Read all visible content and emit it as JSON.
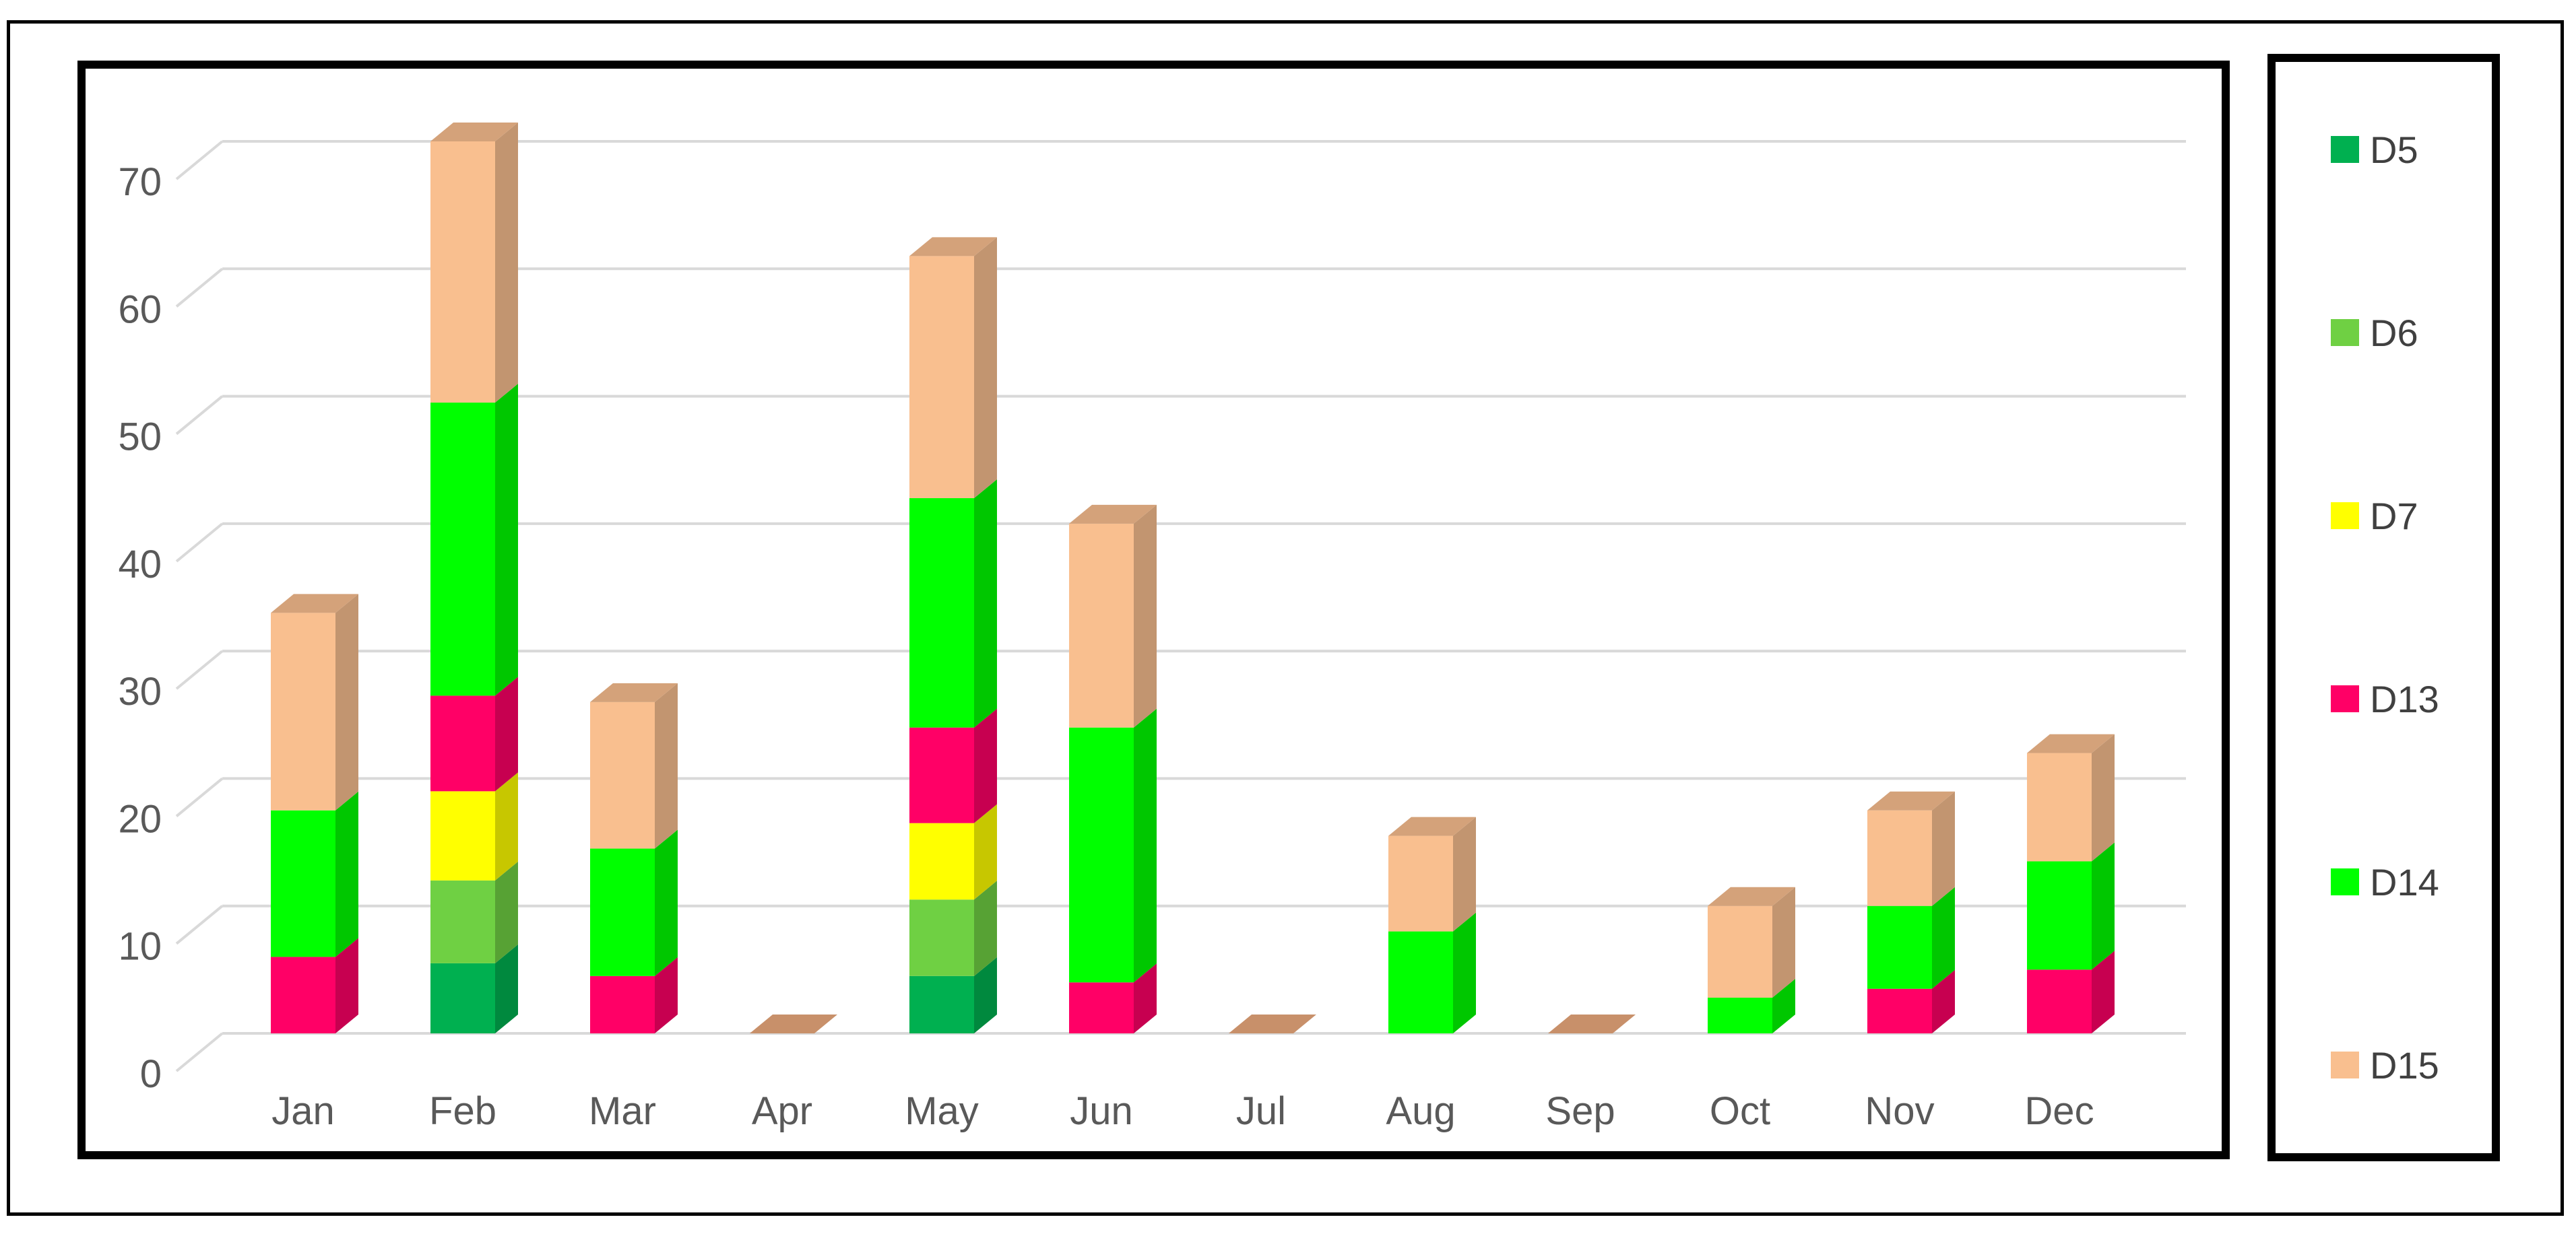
{
  "chart_data": {
    "type": "bar",
    "stacked": true,
    "style": "3d-column",
    "categories": [
      "Jan",
      "Feb",
      "Mar",
      "Apr",
      "May",
      "Jun",
      "Jul",
      "Aug",
      "Sep",
      "Oct",
      "Nov",
      "Dec"
    ],
    "series": [
      {
        "name": "D5",
        "color": "#00b050",
        "values": [
          0,
          5.5,
          0,
          0,
          4.5,
          0,
          0,
          0,
          0,
          0,
          0,
          0
        ]
      },
      {
        "name": "D6",
        "color": "#6fd043",
        "values": [
          0,
          6.5,
          0,
          0,
          6,
          0,
          0,
          0,
          0,
          0,
          0,
          0
        ]
      },
      {
        "name": "D7",
        "color": "#ffff00",
        "values": [
          0,
          7,
          0,
          0,
          6,
          0,
          0,
          0,
          0,
          0,
          0,
          0
        ]
      },
      {
        "name": "D13",
        "color": "#ff0066",
        "values": [
          6,
          7.5,
          4.5,
          0,
          7.5,
          4,
          0,
          0,
          0,
          0,
          3.5,
          5
        ]
      },
      {
        "name": "D14",
        "color": "#00ff00",
        "values": [
          11.5,
          23,
          10,
          0,
          18,
          20,
          0,
          8,
          0,
          2.8,
          6.5,
          8.5
        ]
      },
      {
        "name": "D15",
        "color": "#f9bf8f",
        "values": [
          15.5,
          20.5,
          11.5,
          0,
          19,
          16,
          0,
          7.5,
          0,
          7.2,
          7.5,
          8.5
        ]
      }
    ],
    "ylim": [
      0,
      70
    ],
    "yticks": [
      "0",
      "10",
      "20",
      "30",
      "40",
      "50",
      "60",
      "70"
    ],
    "grid": true,
    "legend": "right",
    "title": "",
    "xlabel": "",
    "ylabel": ""
  }
}
